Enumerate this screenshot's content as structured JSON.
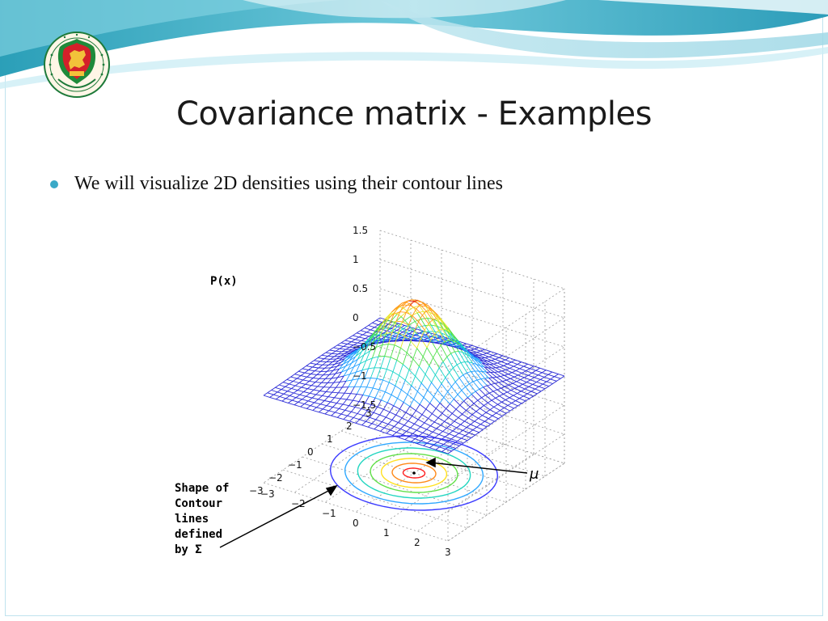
{
  "slide": {
    "title": "Covariance matrix - Examples",
    "bullet": "We will visualize 2D densities using their contour lines",
    "accent_color": "#3aa9c7"
  },
  "logo": {
    "icon": "university-seal-icon",
    "ring_text": "UNIVERSITAS SCIENTIARUM SZEGEDIENSIS · SZEGEDI TUDOMÁNYEGYETEM"
  },
  "figure": {
    "z_ticks": [
      "1.5",
      "1",
      "0.5",
      "0",
      "−0.5",
      "−1",
      "−1.5"
    ],
    "left_axis_ticks": [
      "3",
      "2",
      "1",
      "0",
      "−1",
      "−2",
      "−3"
    ],
    "right_axis_ticks": [
      "−3",
      "−2",
      "−1",
      "0",
      "1",
      "2",
      "3"
    ],
    "z_label": "P(x)",
    "mu_label": "μ",
    "annotation_lines": [
      "Shape of",
      "Contour",
      "lines",
      "defined",
      "by Σ"
    ],
    "surface_colors": [
      "#2b2bd6",
      "#1f9fff",
      "#19d4c8",
      "#4fe04a",
      "#e8e82a",
      "#ff9a1a",
      "#e02020"
    ],
    "contour_colors": [
      "#3a3aff",
      "#2fa8ff",
      "#22d6c0",
      "#62e04a",
      "#ffe020",
      "#ff8a1a",
      "#ff2020"
    ]
  }
}
